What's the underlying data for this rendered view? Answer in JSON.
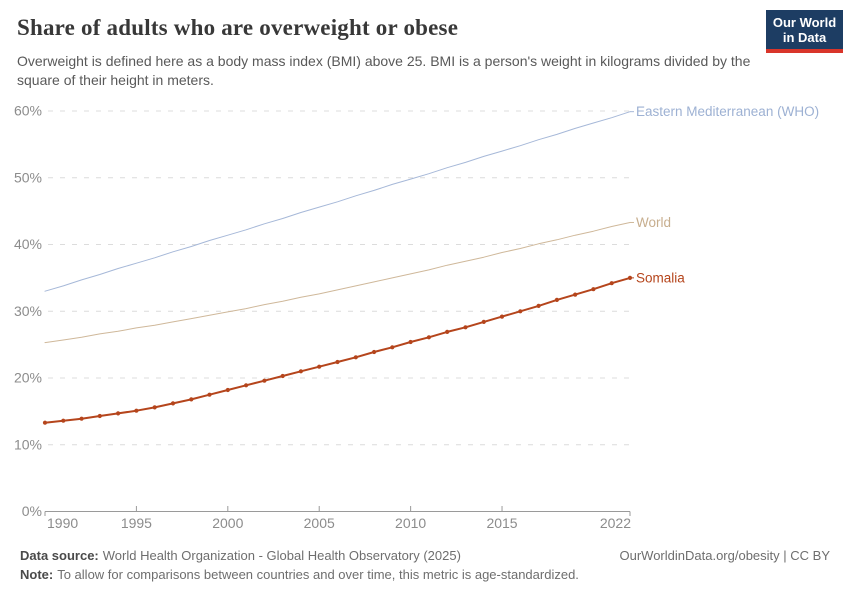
{
  "header": {
    "title": "Share of adults who are overweight or obese",
    "subtitle": "Overweight is defined here as a body mass index (BMI) above 25. BMI is a person's weight in kilograms divided by the square of their height in meters.",
    "logo_line1": "Our World",
    "logo_line2": "in Data",
    "logo_bg_color": "#1d3d63",
    "logo_stripe_color": "#d9352a"
  },
  "footer": {
    "data_source_label": "Data source:",
    "data_source_text": "World Health Organization - Global Health Observatory (2025)",
    "attribution": "OurWorldinData.org/obesity | CC BY",
    "note_label": "Note:",
    "note_text": "To allow for comparisons between countries and over time, this metric is age-standardized."
  },
  "chart_data": {
    "type": "line",
    "title": "Share of adults who are overweight or obese",
    "xlabel": "",
    "ylabel": "",
    "xlim": [
      1990,
      2022
    ],
    "ylim": [
      0,
      60
    ],
    "grid": "horizontal-dashed",
    "legend_position": "right-edge-labels",
    "x_tick_labels": [
      "1990",
      "1995",
      "2000",
      "2005",
      "2010",
      "2015",
      "2022"
    ],
    "x_ticks": [
      1990,
      1995,
      2000,
      2005,
      2010,
      2015,
      2022
    ],
    "y_ticks": [
      0,
      10,
      20,
      30,
      40,
      50,
      60
    ],
    "y_tick_suffix": "%",
    "x": [
      1990,
      1991,
      1992,
      1993,
      1994,
      1995,
      1996,
      1997,
      1998,
      1999,
      2000,
      2001,
      2002,
      2003,
      2004,
      2005,
      2006,
      2007,
      2008,
      2009,
      2010,
      2011,
      2012,
      2013,
      2014,
      2015,
      2016,
      2017,
      2018,
      2019,
      2020,
      2021,
      2022
    ],
    "series": [
      {
        "name": "Eastern Mediterranean (WHO)",
        "color": "#a6b8d8",
        "label_color": "#9db1d3",
        "markers": false,
        "line_width": 1,
        "values": [
          33.0,
          33.8,
          34.7,
          35.5,
          36.4,
          37.2,
          38.0,
          38.9,
          39.7,
          40.6,
          41.4,
          42.2,
          43.1,
          43.9,
          44.8,
          45.6,
          46.4,
          47.3,
          48.1,
          49.0,
          49.8,
          50.6,
          51.5,
          52.3,
          53.2,
          54.0,
          54.8,
          55.7,
          56.5,
          57.4,
          58.2,
          59.0,
          59.9
        ]
      },
      {
        "name": "World",
        "color": "#cfb89a",
        "label_color": "#c7ae8e",
        "markers": false,
        "line_width": 1,
        "values": [
          25.3,
          25.7,
          26.1,
          26.6,
          27.0,
          27.5,
          27.9,
          28.4,
          28.9,
          29.4,
          29.9,
          30.4,
          31.0,
          31.5,
          32.1,
          32.6,
          33.2,
          33.8,
          34.4,
          35.0,
          35.6,
          36.2,
          36.9,
          37.5,
          38.1,
          38.8,
          39.4,
          40.1,
          40.7,
          41.4,
          42.0,
          42.7,
          43.3
        ]
      },
      {
        "name": "Somalia",
        "color": "#b5451c",
        "label_color": "#b5451c",
        "markers": true,
        "line_width": 2,
        "values": [
          13.3,
          13.6,
          13.9,
          14.3,
          14.7,
          15.1,
          15.6,
          16.2,
          16.8,
          17.5,
          18.2,
          18.9,
          19.6,
          20.3,
          21.0,
          21.7,
          22.4,
          23.1,
          23.9,
          24.6,
          25.4,
          26.1,
          26.9,
          27.6,
          28.4,
          29.2,
          30.0,
          30.8,
          31.7,
          32.5,
          33.3,
          34.2,
          35.0
        ]
      }
    ]
  },
  "style": {
    "axis_color": "#9a9a9a",
    "tick_label_color": "#8c8c8c",
    "gridline_color": "#dcdcdc"
  }
}
